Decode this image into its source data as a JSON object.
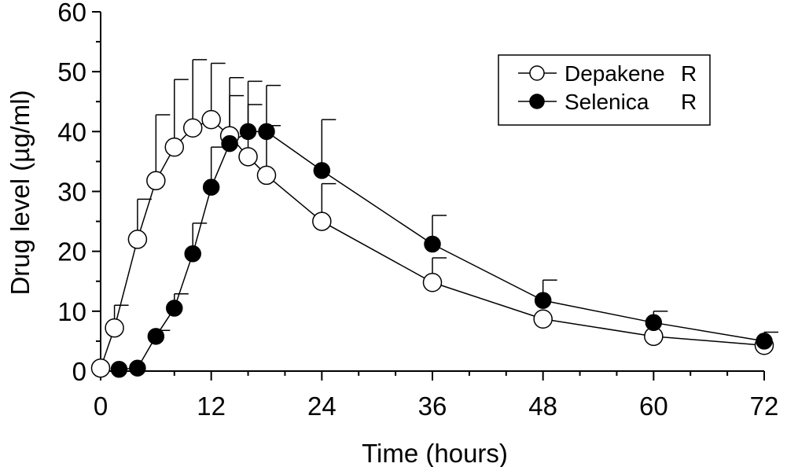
{
  "chart_data": {
    "type": "line",
    "xlabel": "Time (hours)",
    "ylabel": "Drug level (µg/ml)",
    "xlim": [
      0,
      72
    ],
    "ylim": [
      0,
      60
    ],
    "xticks": [
      "0",
      "12",
      "24",
      "36",
      "48",
      "60",
      "72"
    ],
    "yticks": [
      "0",
      "10",
      "20",
      "30",
      "40",
      "50",
      "60"
    ],
    "grid": false,
    "legend_position": "top-right",
    "series": [
      {
        "name": "Depakene",
        "marker": "open-circle",
        "superscript": "R",
        "x": [
          0,
          1.5,
          4,
          6,
          8,
          10,
          12,
          14,
          16,
          18,
          24,
          36,
          48,
          60,
          72
        ],
        "y": [
          0.5,
          7.2,
          22,
          31.8,
          37.4,
          40.6,
          42,
          39.3,
          35.8,
          32.7,
          25,
          14.8,
          8.7,
          5.8,
          4.3
        ],
        "error_upper": [
          null,
          11,
          28.7,
          42.8,
          48.7,
          52,
          51.4,
          46,
          44.5,
          41,
          31.3,
          18.9,
          null,
          null,
          null
        ]
      },
      {
        "name": "Selenica",
        "marker": "filled-circle",
        "superscript": "R",
        "x": [
          2,
          4,
          6,
          8,
          10,
          12,
          14,
          16,
          18,
          24,
          36,
          48,
          60,
          72
        ],
        "y": [
          0.3,
          0.5,
          5.8,
          10.5,
          19.6,
          30.7,
          38,
          40,
          40,
          33.5,
          21.2,
          11.8,
          8.1,
          5
        ],
        "error_upper": [
          null,
          null,
          6.8,
          12.9,
          24.7,
          37.4,
          49,
          48.4,
          47.7,
          42,
          26,
          15.2,
          10,
          6.5
        ]
      }
    ]
  }
}
